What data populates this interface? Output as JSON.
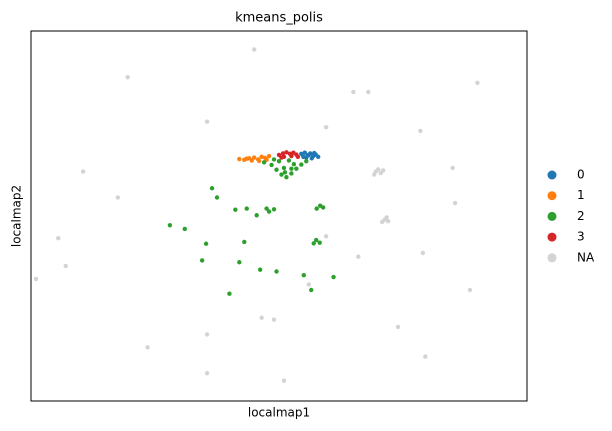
{
  "chart_data": {
    "type": "scatter",
    "title": "kmeans_polis",
    "x_label": "localmap1",
    "y_label": "localmap2",
    "xlim": [
      0,
      100
    ],
    "ylim": [
      0,
      100
    ],
    "grid": false,
    "series": [
      {
        "name": "0",
        "color": "#1f77b4",
        "x": [
          54.5,
          55.2,
          55.8,
          56.3,
          56.9,
          57.4,
          57.9,
          55.5,
          56.6,
          57.1,
          54.9,
          56.0
        ],
        "y": [
          66.8,
          67.1,
          66.4,
          66.9,
          66.2,
          66.6,
          66.0,
          65.8,
          65.6,
          67.0,
          66.0,
          66.5
        ]
      },
      {
        "name": "1",
        "color": "#ff7f0e",
        "x": [
          42.0,
          43.0,
          44.0,
          45.0,
          45.8,
          46.5,
          47.2,
          48.0,
          44.5,
          46.0,
          47.5,
          43.5
        ],
        "y": [
          65.4,
          65.2,
          65.6,
          65.8,
          65.3,
          66.0,
          65.7,
          66.2,
          65.0,
          64.9,
          65.2,
          65.5
        ]
      },
      {
        "name": "2",
        "color": "#2ca02c",
        "x": [
          47,
          48.5,
          49.5,
          50.5,
          51.5,
          52.5,
          53.5,
          54.5,
          55.5,
          50,
          52,
          51,
          53,
          49,
          52.5,
          51.2,
          58.3,
          57.6,
          58.9,
          57.5,
          58.2,
          57.0,
          49.0,
          48.0,
          47.5,
          43.5,
          41.2,
          45.5,
          36.5,
          31.0,
          28.0,
          35.3,
          43.0,
          34.5,
          46.2,
          42.0,
          49.5,
          40.0,
          56.5,
          55.0,
          61.0,
          37.5
        ],
        "y": [
          64.5,
          63.8,
          62.5,
          61.2,
          60.5,
          61.5,
          62.8,
          63.9,
          64.8,
          64.8,
          65,
          63,
          64,
          65.3,
          62.8,
          61.8,
          52.8,
          52.0,
          52.3,
          43.5,
          42.8,
          42.6,
          51.8,
          51.2,
          52.0,
          52.0,
          51.7,
          50.2,
          57.5,
          46.5,
          47.5,
          42.5,
          43.0,
          38.0,
          35.5,
          37.5,
          35.0,
          29.0,
          30.0,
          34.0,
          33.5,
          55.0
        ]
      },
      {
        "name": "3",
        "color": "#d62728",
        "x": [
          50.0,
          50.8,
          51.5,
          52.2,
          52.9,
          53.5,
          51.0,
          52.5,
          53.8,
          50.5
        ],
        "y": [
          66.5,
          66.9,
          67.2,
          66.8,
          67.1,
          66.6,
          66.0,
          66.2,
          66.0,
          65.8
        ]
      },
      {
        "name": "NA",
        "color": "#d3d3d3",
        "x": [
          69.5,
          70.5,
          70.0,
          69.2,
          71.0,
          71.3,
          72.0,
          70.8,
          71.7,
          65.0,
          45,
          56,
          59.5,
          66,
          46.5,
          49,
          35.5,
          23.5,
          35.5,
          51.0,
          79.5,
          74,
          88.5,
          79,
          85.5,
          85,
          78.5,
          59.5,
          35.5,
          19.5,
          10.5,
          5.5,
          7,
          1,
          17.5,
          90,
          68
        ],
        "y": [
          62.0,
          61.6,
          62.6,
          61.2,
          62.3,
          49.0,
          48.6,
          48.4,
          49.6,
          83.5,
          95,
          31.5,
          44.5,
          39,
          22.5,
          22.0,
          18,
          14.5,
          7.5,
          5.5,
          12.0,
          20,
          30,
          40,
          53.5,
          63,
          73,
          74,
          75.5,
          87.5,
          62,
          44,
          36.5,
          33,
          55,
          86,
          83.5
        ]
      }
    ]
  }
}
